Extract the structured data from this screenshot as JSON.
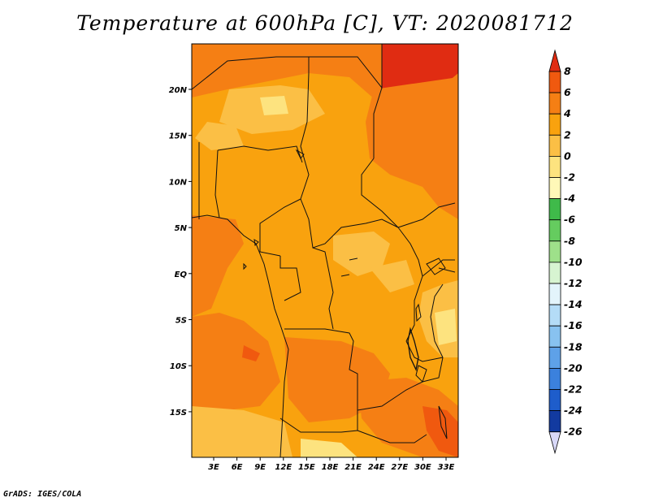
{
  "title": "Temperature at 600hPa [C], VT: 2020081712",
  "footer": "GrADS: IGES/COLA",
  "map": {
    "lon_ticks": [
      "3E",
      "6E",
      "9E",
      "12E",
      "15E",
      "18E",
      "21E",
      "24E",
      "27E",
      "30E",
      "33E"
    ],
    "lat_ticks": [
      "20N",
      "15N",
      "10N",
      "5N",
      "EQ",
      "5S",
      "10S",
      "15S"
    ]
  },
  "colorbar": {
    "labels": [
      "8",
      "6",
      "4",
      "2",
      "0",
      "-2",
      "-4",
      "-6",
      "-8",
      "-10",
      "-12",
      "-14",
      "-16",
      "-18",
      "-20",
      "-22",
      "-24",
      "-26"
    ],
    "colors": [
      "#e02c12",
      "#f0590f",
      "#f57f14",
      "#f9a20e",
      "#fbbf45",
      "#fde37f",
      "#fff8b8",
      "#3fba4a",
      "#65cc5f",
      "#9ee08a",
      "#d7f4d1",
      "#e3f4fb",
      "#b4dcf7",
      "#88c2f0",
      "#5ea1e8",
      "#3b81dd",
      "#1e5dcb",
      "#123aa0",
      "#0a1a70",
      "#d8d8f8"
    ],
    "extend_top_color": "#e02c12",
    "extend_bottom_color": "#d8d8f8"
  }
}
